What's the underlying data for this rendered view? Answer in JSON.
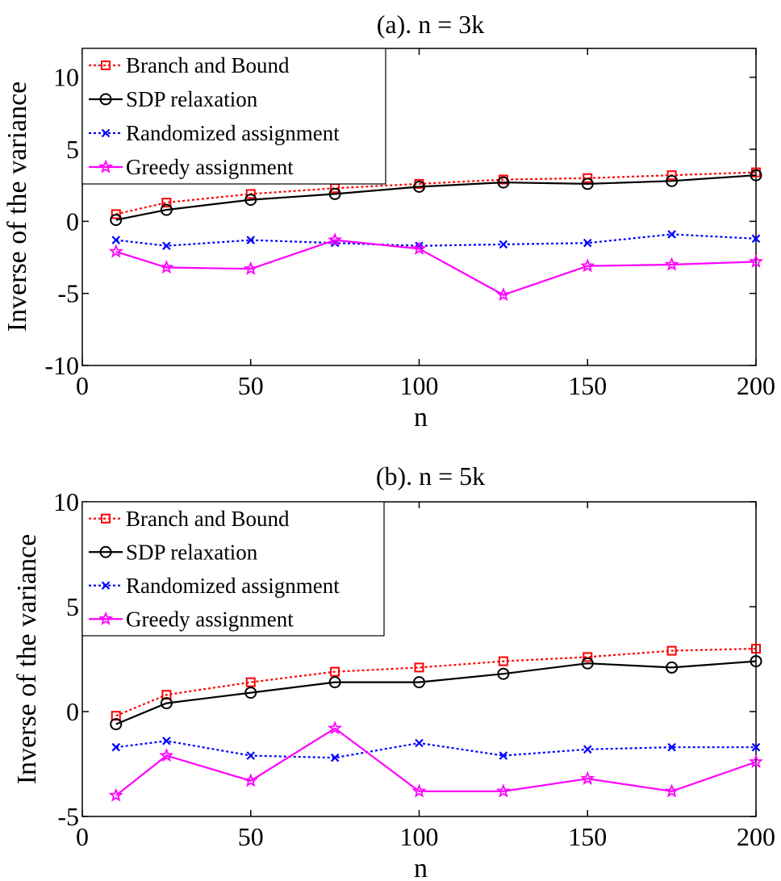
{
  "chart_data": [
    {
      "type": "line",
      "title": "(a). n = 3k",
      "xlabel": "n",
      "ylabel": "Inverse of the variance",
      "xlim": [
        0,
        200
      ],
      "ylim": [
        -10,
        12
      ],
      "xticks": [
        "0",
        "50",
        "100",
        "150",
        "200"
      ],
      "yticks": [
        "10",
        "5",
        "0",
        "-5",
        "-10"
      ],
      "x": [
        10,
        25,
        50,
        75,
        100,
        125,
        150,
        175,
        200
      ],
      "legend_position": "top-left",
      "series": [
        {
          "name": "Branch and Bound",
          "color": "#ff0000",
          "line": "dotted",
          "marker": "square",
          "values": [
            0.5,
            1.3,
            1.9,
            2.3,
            2.6,
            2.9,
            3.0,
            3.2,
            3.4
          ]
        },
        {
          "name": "SDP relaxation",
          "color": "#000000",
          "line": "solid",
          "marker": "circle",
          "values": [
            0.1,
            0.8,
            1.5,
            1.9,
            2.4,
            2.7,
            2.6,
            2.8,
            3.2
          ]
        },
        {
          "name": "Randomized assignment",
          "color": "#0000ff",
          "line": "dotted",
          "marker": "x",
          "values": [
            -1.3,
            -1.7,
            -1.3,
            -1.5,
            -1.7,
            -1.6,
            -1.5,
            -0.9,
            -1.2
          ]
        },
        {
          "name": "Greedy assignment",
          "color": "#ff00ff",
          "line": "solid",
          "marker": "star",
          "values": [
            -2.1,
            -3.2,
            -3.3,
            -1.3,
            -1.9,
            -5.1,
            -3.1,
            -3.0,
            -2.8
          ]
        }
      ]
    },
    {
      "type": "line",
      "title": "(b). n = 5k",
      "xlabel": "n",
      "ylabel": "Inverse of the variance",
      "xlim": [
        0,
        200
      ],
      "ylim": [
        -5,
        10
      ],
      "xticks": [
        "0",
        "50",
        "100",
        "150",
        "200"
      ],
      "yticks": [
        "10",
        "5",
        "0",
        "-5"
      ],
      "x": [
        10,
        25,
        50,
        75,
        100,
        125,
        150,
        175,
        200
      ],
      "legend_position": "top-left",
      "series": [
        {
          "name": "Branch and Bound",
          "color": "#ff0000",
          "line": "dotted",
          "marker": "square",
          "values": [
            -0.2,
            0.8,
            1.4,
            1.9,
            2.1,
            2.4,
            2.6,
            2.9,
            3.0
          ]
        },
        {
          "name": "SDP relaxation",
          "color": "#000000",
          "line": "solid",
          "marker": "circle",
          "values": [
            -0.6,
            0.4,
            0.9,
            1.4,
            1.4,
            1.8,
            2.3,
            2.1,
            2.4
          ]
        },
        {
          "name": "Randomized assignment",
          "color": "#0000ff",
          "line": "dotted",
          "marker": "x",
          "values": [
            -1.7,
            -1.4,
            -2.1,
            -2.2,
            -1.5,
            -2.1,
            -1.8,
            -1.7,
            -1.7
          ]
        },
        {
          "name": "Greedy assignment",
          "color": "#ff00ff",
          "line": "solid",
          "marker": "star",
          "values": [
            -4.0,
            -2.1,
            -3.3,
            -0.8,
            -3.8,
            -3.8,
            -3.2,
            -3.8,
            -2.4
          ]
        }
      ]
    }
  ]
}
